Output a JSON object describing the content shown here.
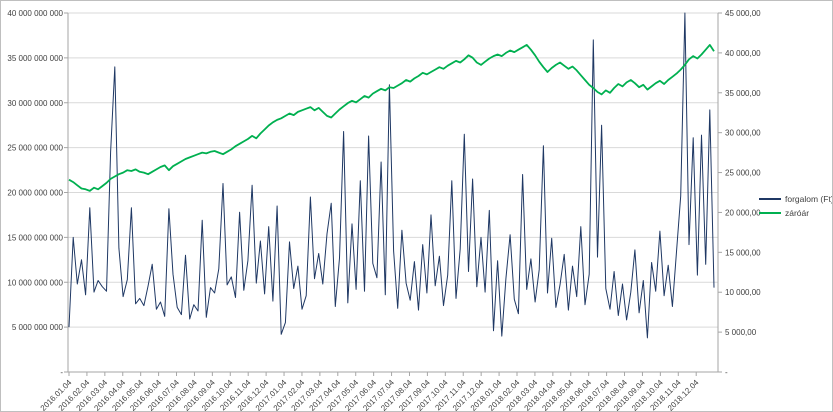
{
  "chart_data": {
    "type": "line",
    "title": "",
    "grid": "horizontal",
    "colors": {
      "background": "#ffffff",
      "gridline": "#d9d9d9",
      "axis_line": "#a6a6a6",
      "tick_text": "#404040",
      "border": "#bfbfbf"
    },
    "legend": {
      "position": "right",
      "entries": [
        {
          "label": "forgalom (Ft)",
          "color": "#1f3864"
        },
        {
          "label": "záróár",
          "color": "#00b050"
        }
      ]
    },
    "x_axis": {
      "rotation": -45,
      "tick_labels": [
        "2016.01.04",
        "2016.02.04",
        "2016.03.04",
        "2016.04.04",
        "2016.05.04",
        "2016.06.04",
        "2016.07.04",
        "2016.08.04",
        "2016.09.04",
        "2016.10.04",
        "2016.11.04",
        "2016.12.04",
        "2017.01.04",
        "2017.02.04",
        "2017.03.04",
        "2017.04.04",
        "2017.05.04",
        "2017.06.04",
        "2017.07.04",
        "2017.08.04",
        "2017.09.04",
        "2017.10.04",
        "2017.11.04",
        "2017.12.04",
        "2018.01.04",
        "2018.02.04",
        "2018.03.04",
        "2018.04.04",
        "2018.05.04",
        "2018.06.04",
        "2018.07.04",
        "2018.08.04",
        "2018.09.04",
        "2018.10.04",
        "2018.11.04",
        "2018.12.04"
      ]
    },
    "left_axis": {
      "min": 0,
      "max": 40000000000,
      "step": 5000000000,
      "tick_labels_top_to_bottom": [
        "40 000 000 000",
        "35 000 000 000",
        "30 000 000 000",
        "25 000 000 000",
        "20 000 000 000",
        "15 000 000 000",
        "10 000 000 000",
        "5 000 000 000",
        "-"
      ]
    },
    "right_axis": {
      "min": 0,
      "max": 45000,
      "step": 5000,
      "tick_labels_top_to_bottom": [
        "45 000,00",
        "40 000,00",
        "35 000,00",
        "30 000,00",
        "25 000,00",
        "20 000,00",
        "15 000,00",
        "10 000,00",
        "5 000,00",
        "-"
      ]
    },
    "series": [
      {
        "name": "forgalom (Ft)",
        "axis": "left",
        "color": "#1f3864",
        "stroke_width": 1,
        "unit": "Ft",
        "value_multiplier": 1000000000,
        "sampling": "weekly estimate read from pixels (original is daily)",
        "values": [
          5.0,
          15.0,
          9.8,
          12.5,
          8.6,
          18.3,
          8.9,
          10.2,
          9.5,
          9.0,
          24.5,
          34.0,
          13.8,
          8.4,
          10.3,
          18.3,
          7.6,
          8.2,
          7.4,
          9.6,
          12.0,
          7.0,
          7.8,
          6.2,
          18.2,
          10.9,
          7.2,
          6.4,
          13.0,
          5.9,
          7.5,
          6.8,
          16.9,
          6.1,
          9.4,
          8.8,
          11.5,
          21.0,
          9.7,
          10.6,
          8.3,
          17.8,
          9.1,
          12.4,
          20.8,
          9.9,
          14.6,
          8.7,
          16.2,
          7.9,
          18.5,
          4.2,
          5.5,
          14.5,
          9.3,
          11.8,
          7.0,
          8.5,
          19.5,
          10.4,
          13.2,
          9.8,
          15.4,
          18.8,
          7.3,
          12.7,
          26.8,
          7.7,
          16.5,
          9.2,
          21.3,
          9.0,
          26.3,
          12.1,
          10.5,
          23.4,
          8.6,
          32.0,
          13.5,
          7.1,
          15.8,
          9.9,
          8.0,
          12.3,
          6.9,
          14.2,
          8.8,
          17.5,
          9.6,
          12.9,
          7.4,
          10.8,
          21.3,
          8.2,
          13.7,
          26.5,
          11.2,
          21.5,
          9.5,
          15.0,
          8.9,
          18.0,
          4.6,
          12.4,
          4.0,
          10.4,
          15.3,
          8.1,
          6.5,
          22.0,
          9.2,
          12.6,
          7.8,
          11.4,
          25.2,
          8.8,
          14.9,
          7.2,
          9.7,
          13.1,
          6.9,
          11.8,
          8.4,
          16.2,
          7.5,
          10.9,
          37.0,
          12.8,
          27.5,
          9.3,
          7.0,
          11.2,
          6.3,
          9.8,
          5.8,
          8.9,
          13.6,
          6.6,
          10.2,
          3.8,
          12.2,
          9.0,
          15.7,
          8.5,
          11.9,
          7.3,
          13.4,
          19.6,
          40.0,
          14.2,
          26.1,
          10.8,
          26.4,
          12.0,
          29.2,
          9.4
        ]
      },
      {
        "name": "záróár",
        "axis": "right",
        "color": "#00b050",
        "stroke_width": 1.8,
        "unit": "Ft",
        "value_multiplier": 1,
        "sampling": "weekly estimate read from pixels (original is daily)",
        "values": [
          24100,
          23800,
          23400,
          23000,
          22900,
          22700,
          23100,
          22900,
          23300,
          23700,
          24200,
          24500,
          24800,
          25000,
          25300,
          25200,
          25400,
          25100,
          25000,
          24800,
          25100,
          25400,
          25700,
          25900,
          25300,
          25800,
          26100,
          26400,
          26700,
          26900,
          27100,
          27300,
          27500,
          27400,
          27600,
          27700,
          27500,
          27300,
          27600,
          27900,
          28300,
          28600,
          28900,
          29200,
          29600,
          29300,
          29900,
          30400,
          30900,
          31300,
          31600,
          31800,
          32100,
          32400,
          32200,
          32600,
          32800,
          33000,
          33200,
          32800,
          33100,
          32600,
          32100,
          31900,
          32400,
          32900,
          33300,
          33700,
          34000,
          33800,
          34200,
          34600,
          34400,
          34900,
          35200,
          35500,
          35300,
          35700,
          35600,
          35900,
          36200,
          36600,
          36400,
          36800,
          37100,
          37500,
          37300,
          37600,
          37900,
          38200,
          38000,
          38400,
          38700,
          39000,
          38800,
          39200,
          39700,
          39400,
          38800,
          38500,
          38900,
          39300,
          39600,
          39800,
          39600,
          40000,
          40300,
          40100,
          40400,
          40700,
          41000,
          40400,
          39700,
          38900,
          38200,
          37600,
          38100,
          38500,
          38800,
          38400,
          38000,
          38300,
          37800,
          37200,
          36600,
          36000,
          35600,
          35100,
          34800,
          35300,
          35000,
          35600,
          36100,
          35800,
          36300,
          36600,
          36200,
          35700,
          36000,
          35400,
          35800,
          36200,
          36500,
          36100,
          36600,
          37000,
          37400,
          37900,
          38500,
          39200,
          39600,
          39300,
          39800,
          40400,
          41000,
          40200
        ]
      }
    ]
  }
}
